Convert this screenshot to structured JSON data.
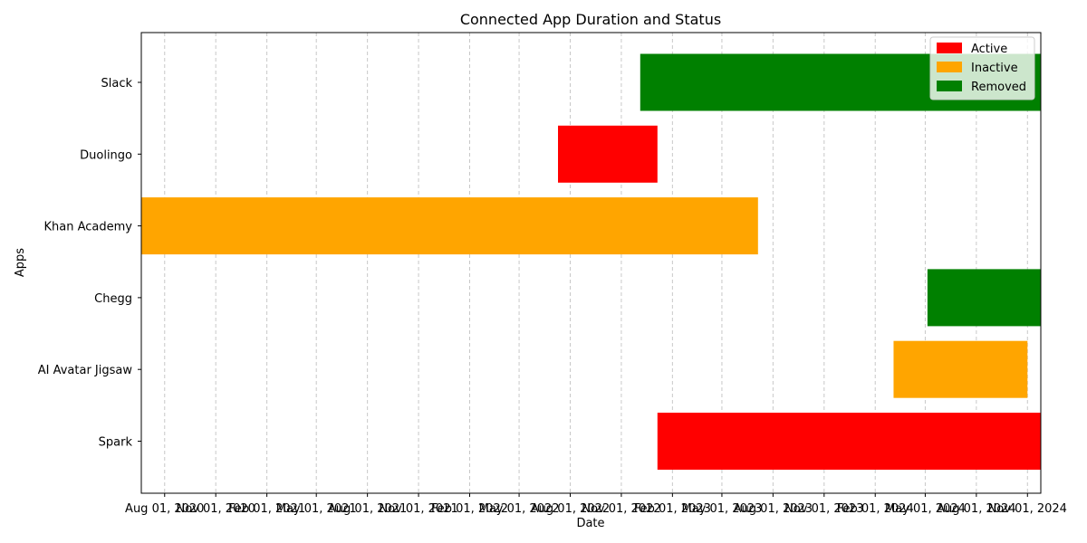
{
  "chart_data": {
    "type": "bar",
    "orientation": "horizontal-gantt",
    "title": "Connected App Duration and Status",
    "xlabel": "Date",
    "ylabel": "Apps",
    "x_axis": "date",
    "xlim": [
      "2020-06-20",
      "2024-11-25"
    ],
    "x_ticks": [
      "2020-08-01",
      "2020-11-01",
      "2021-02-01",
      "2021-05-01",
      "2021-08-01",
      "2021-11-01",
      "2022-02-01",
      "2022-05-01",
      "2022-08-01",
      "2022-11-01",
      "2023-02-01",
      "2023-05-01",
      "2023-08-01",
      "2023-11-01",
      "2024-02-01",
      "2024-05-01",
      "2024-08-01",
      "2024-11-01"
    ],
    "x_tick_labels": [
      "Aug 01, 2020",
      "Nov 01, 2020",
      "Feb 01, 2021",
      "May 01, 2021",
      "Aug 01, 2021",
      "Nov 01, 2021",
      "Feb 01, 2022",
      "May 01, 2022",
      "Aug 01, 2022",
      "Nov 01, 2022",
      "Feb 01, 2023",
      "May 01, 2023",
      "Aug 01, 2023",
      "Nov 01, 2023",
      "Feb 01, 2024",
      "May 01, 2024",
      "Aug 01, 2024",
      "Nov 01, 2024"
    ],
    "categories": [
      "Slack",
      "Duolingo",
      "Khan Academy",
      "Chegg",
      "AI Avatar Jigsaw",
      "Spark"
    ],
    "bars": [
      {
        "app": "Slack",
        "start": "2022-12-05",
        "end": "2024-11-25",
        "status": "Removed"
      },
      {
        "app": "Duolingo",
        "start": "2022-07-10",
        "end": "2023-01-05",
        "status": "Active"
      },
      {
        "app": "Khan Academy",
        "start": "2020-06-20",
        "end": "2023-07-05",
        "status": "Inactive"
      },
      {
        "app": "Chegg",
        "start": "2024-05-05",
        "end": "2024-11-25",
        "status": "Removed"
      },
      {
        "app": "AI Avatar Jigsaw",
        "start": "2024-03-05",
        "end": "2024-11-01",
        "status": "Inactive"
      },
      {
        "app": "Spark",
        "start": "2023-01-05",
        "end": "2024-11-25",
        "status": "Active"
      }
    ],
    "legend": {
      "placement": "top-right",
      "entries": [
        {
          "label": "Active",
          "color": "#ff0000"
        },
        {
          "label": "Inactive",
          "color": "#ffa500"
        },
        {
          "label": "Removed",
          "color": "#008000"
        }
      ]
    },
    "grid": {
      "x": true,
      "y": false,
      "style": "dashed",
      "color": "#c8c8c8"
    }
  }
}
